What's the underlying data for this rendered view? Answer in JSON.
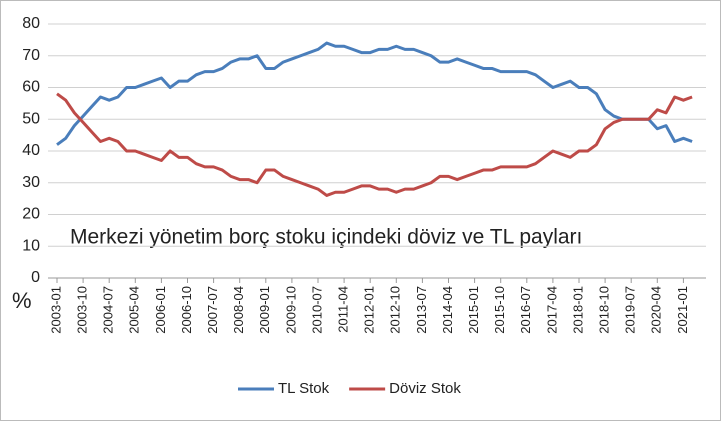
{
  "chart_data": {
    "type": "line",
    "annotation": "Merkezi yönetim borç stoku içindeki döviz ve TL payları",
    "y_label": "%",
    "categories": [
      "2003-01",
      null,
      null,
      "2003-10",
      null,
      null,
      "2004-07",
      null,
      null,
      "2005-04",
      null,
      null,
      "2006-01",
      null,
      null,
      "2006-10",
      null,
      null,
      "2007-07",
      null,
      null,
      "2008-04",
      null,
      null,
      "2009-01",
      null,
      null,
      "2009-10",
      null,
      null,
      "2010-07",
      null,
      null,
      "2011-04",
      null,
      null,
      "2012-01",
      null,
      null,
      "2012-10",
      null,
      null,
      "2013-07",
      null,
      null,
      "2014-04",
      null,
      null,
      "2015-01",
      null,
      null,
      "2015-10",
      null,
      null,
      "2016-07",
      null,
      null,
      "2017-04",
      null,
      null,
      "2018-01",
      null,
      null,
      "2018-10",
      null,
      null,
      "2019-07",
      null,
      null,
      "2020-04",
      null,
      null,
      "2021-01",
      null
    ],
    "series": [
      {
        "name": "TL Stok",
        "color": "#4a7ebb",
        "values": [
          42,
          44,
          48,
          51,
          54,
          57,
          56,
          57,
          60,
          60,
          61,
          62,
          63,
          60,
          62,
          62,
          64,
          65,
          65,
          66,
          68,
          69,
          69,
          70,
          66,
          66,
          68,
          69,
          70,
          71,
          72,
          74,
          73,
          73,
          72,
          71,
          71,
          72,
          72,
          73,
          72,
          72,
          71,
          70,
          68,
          68,
          69,
          68,
          67,
          66,
          66,
          65,
          65,
          65,
          65,
          64,
          62,
          60,
          61,
          62,
          60,
          60,
          58,
          53,
          51,
          50,
          50,
          50,
          50,
          47,
          48,
          43,
          44,
          43
        ]
      },
      {
        "name": "Döviz Stok",
        "color": "#be4b48",
        "values": [
          58,
          56,
          52,
          49,
          46,
          43,
          44,
          43,
          40,
          40,
          39,
          38,
          37,
          40,
          38,
          38,
          36,
          35,
          35,
          34,
          32,
          31,
          31,
          30,
          34,
          34,
          32,
          31,
          30,
          29,
          28,
          26,
          27,
          27,
          28,
          29,
          29,
          28,
          28,
          27,
          28,
          28,
          29,
          30,
          32,
          32,
          31,
          32,
          33,
          34,
          34,
          35,
          35,
          35,
          35,
          36,
          38,
          40,
          39,
          38,
          40,
          40,
          42,
          47,
          49,
          50,
          50,
          50,
          50,
          53,
          52,
          57,
          56,
          57
        ]
      }
    ],
    "ylim": [
      0,
      80
    ],
    "yticks": [
      0,
      10,
      20,
      30,
      40,
      50,
      60,
      70,
      80
    ],
    "grid": true,
    "legend": "bottom"
  }
}
